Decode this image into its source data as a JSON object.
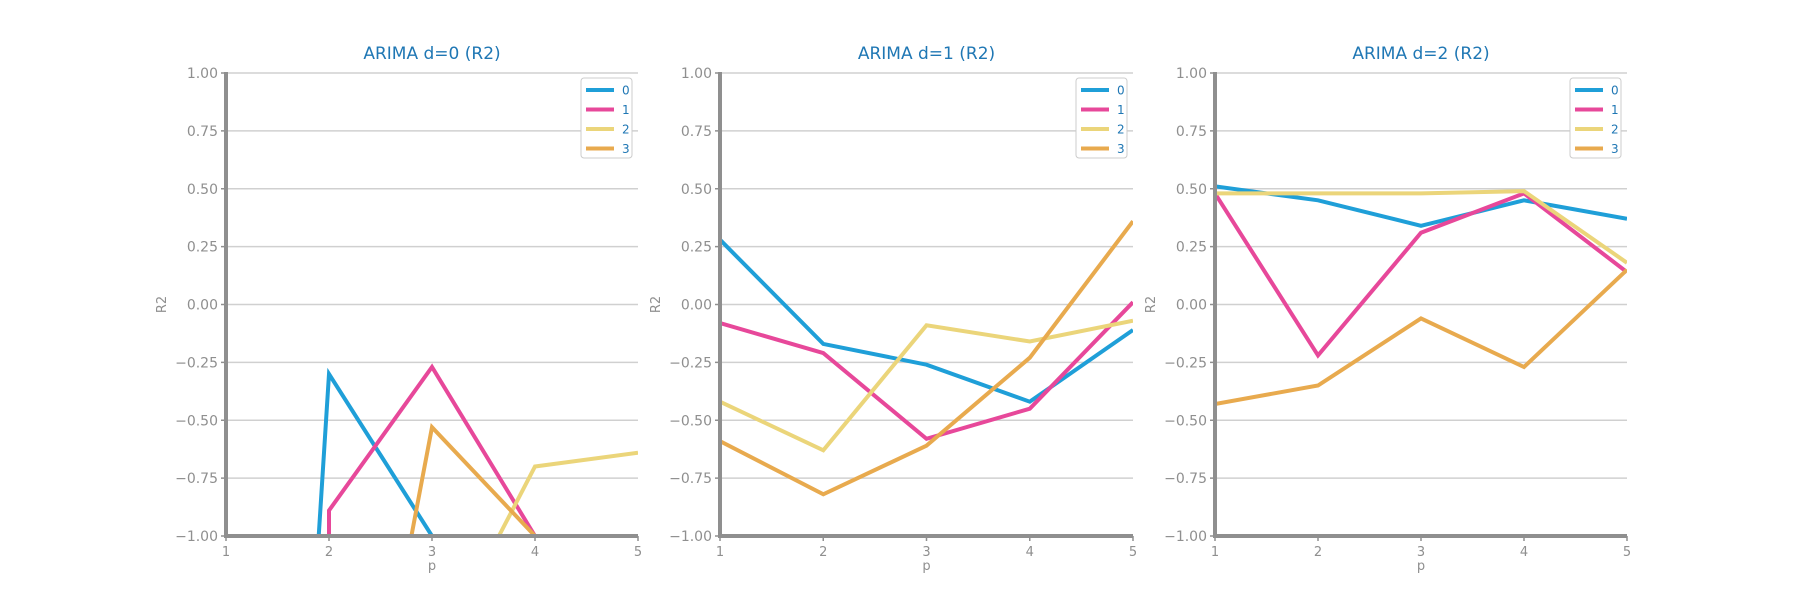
{
  "chart_data": [
    {
      "type": "line",
      "title": "ARIMA d=0 (R2)",
      "xlabel": "p",
      "ylabel": "R2",
      "x": [
        1,
        2,
        3,
        4,
        5
      ],
      "xlim": [
        1,
        5
      ],
      "ylim": [
        -1.0,
        1.0
      ],
      "yticks": [
        "−1.00",
        "−0.75",
        "−0.50",
        "−0.25",
        "0.00",
        "0.25",
        "0.50",
        "0.75",
        "1.00"
      ],
      "xticks": [
        "1",
        "2",
        "3",
        "4",
        "5"
      ],
      "grid": "horizontal",
      "legend": "top-right",
      "series": [
        {
          "name": "0",
          "color": "#1f9fd8",
          "points": [
            [
              1.9,
              -1.0
            ],
            [
              2.0,
              -0.3
            ],
            [
              3.0,
              -1.0
            ],
            [
              4.0,
              -1.0
            ],
            [
              5.0,
              -1.0
            ]
          ]
        },
        {
          "name": "1",
          "color": "#e7489a",
          "points": [
            [
              2.0,
              -1.0
            ],
            [
              2.0,
              -0.89
            ],
            [
              3.0,
              -0.27
            ],
            [
              4.0,
              -1.0
            ],
            [
              5.0,
              -1.0
            ]
          ]
        },
        {
          "name": "2",
          "color": "#ebd57a",
          "points": [
            [
              3.65,
              -1.0
            ],
            [
              4.0,
              -0.7
            ],
            [
              5.0,
              -0.64
            ]
          ]
        },
        {
          "name": "3",
          "color": "#e8aa4e",
          "points": [
            [
              2.8,
              -1.0
            ],
            [
              3.0,
              -0.53
            ],
            [
              4.0,
              -1.0
            ],
            [
              5.0,
              -1.0
            ]
          ]
        }
      ]
    },
    {
      "type": "line",
      "title": "ARIMA d=1 (R2)",
      "xlabel": "p",
      "ylabel": "R2",
      "x": [
        1,
        2,
        3,
        4,
        5
      ],
      "xlim": [
        1,
        5
      ],
      "ylim": [
        -1.0,
        1.0
      ],
      "yticks": [
        "−1.00",
        "−0.75",
        "−0.50",
        "−0.25",
        "0.00",
        "0.25",
        "0.50",
        "0.75",
        "1.00"
      ],
      "xticks": [
        "1",
        "2",
        "3",
        "4",
        "5"
      ],
      "grid": "horizontal",
      "legend": "top-right",
      "series": [
        {
          "name": "0",
          "color": "#1f9fd8",
          "points": [
            [
              1,
              0.28
            ],
            [
              2,
              -0.17
            ],
            [
              3,
              -0.26
            ],
            [
              4,
              -0.42
            ],
            [
              5,
              -0.11
            ]
          ]
        },
        {
          "name": "1",
          "color": "#e7489a",
          "points": [
            [
              1,
              -0.08
            ],
            [
              2,
              -0.21
            ],
            [
              3,
              -0.58
            ],
            [
              4,
              -0.45
            ],
            [
              5,
              0.01
            ]
          ]
        },
        {
          "name": "2",
          "color": "#ebd57a",
          "points": [
            [
              1,
              -0.42
            ],
            [
              2,
              -0.63
            ],
            [
              3,
              -0.09
            ],
            [
              4,
              -0.16
            ],
            [
              5,
              -0.07
            ]
          ]
        },
        {
          "name": "3",
          "color": "#e8aa4e",
          "points": [
            [
              1,
              -0.59
            ],
            [
              2,
              -0.82
            ],
            [
              3,
              -0.61
            ],
            [
              4,
              -0.23
            ],
            [
              5,
              0.36
            ]
          ]
        }
      ]
    },
    {
      "type": "line",
      "title": "ARIMA d=2 (R2)",
      "xlabel": "p",
      "ylabel": "R2",
      "x": [
        1,
        2,
        3,
        4,
        5
      ],
      "xlim": [
        1,
        5
      ],
      "ylim": [
        -1.0,
        1.0
      ],
      "yticks": [
        "−1.00",
        "−0.75",
        "−0.50",
        "−0.25",
        "0.00",
        "0.25",
        "0.50",
        "0.75",
        "1.00"
      ],
      "xticks": [
        "1",
        "2",
        "3",
        "4",
        "5"
      ],
      "grid": "horizontal",
      "legend": "top-right",
      "series": [
        {
          "name": "0",
          "color": "#1f9fd8",
          "points": [
            [
              1,
              0.51
            ],
            [
              2,
              0.45
            ],
            [
              3,
              0.34
            ],
            [
              4,
              0.45
            ],
            [
              5,
              0.37
            ]
          ]
        },
        {
          "name": "1",
          "color": "#e7489a",
          "points": [
            [
              1,
              0.48
            ],
            [
              2,
              -0.22
            ],
            [
              3,
              0.31
            ],
            [
              4,
              0.48
            ],
            [
              5,
              0.14
            ]
          ]
        },
        {
          "name": "2",
          "color": "#ebd57a",
          "points": [
            [
              1,
              0.48
            ],
            [
              2,
              0.48
            ],
            [
              3,
              0.48
            ],
            [
              4,
              0.49
            ],
            [
              5,
              0.18
            ]
          ]
        },
        {
          "name": "3",
          "color": "#e8aa4e",
          "points": [
            [
              1,
              -0.43
            ],
            [
              2,
              -0.35
            ],
            [
              3,
              -0.06
            ],
            [
              4,
              -0.27
            ],
            [
              5,
              0.15
            ]
          ]
        }
      ]
    }
  ]
}
